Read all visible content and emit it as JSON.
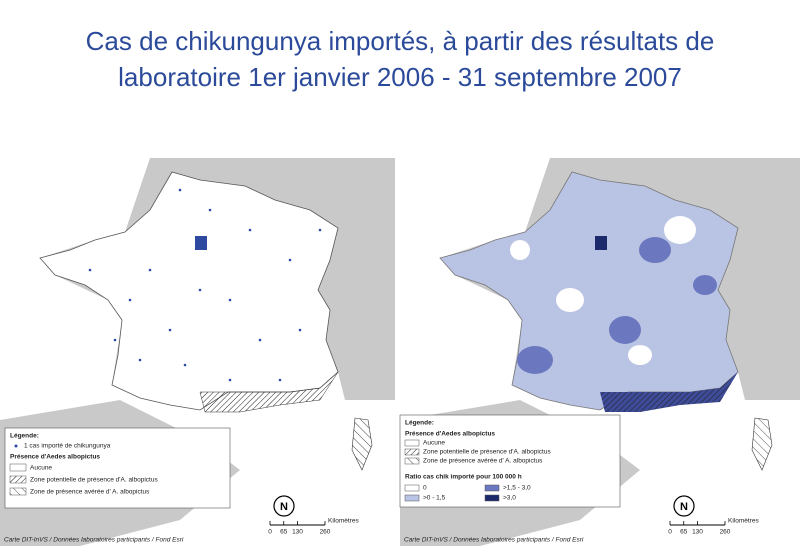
{
  "title": {
    "lines": [
      "Cas de chikungunya importés, à partir des résultats de",
      "laboratoire 1er janvier 2006 - 31 septembre 2007"
    ]
  },
  "left_map": {
    "legend": {
      "heading": "Légende:",
      "case_symbol": "1 cas importé de chikungunya",
      "albopictus_heading": "Présence d'Aedes albopictus",
      "albopictus_classes": [
        "Aucune",
        "Zone potentielle de présence d'A. albopictus",
        "Zone de présence avérée d' A. albopictus"
      ]
    }
  },
  "right_map": {
    "legend": {
      "heading": "Légende:",
      "albopictus_heading": "Présence d'Aedes albopictus",
      "albopictus_classes": [
        "Aucune",
        "Zone potentielle de présence d'A. albopictus",
        "Zone de présence avérée d' A. albopictus"
      ],
      "ratio_heading": "Ratio cas chik importé pour 100 000 h",
      "ratio_classes": [
        {
          "label": "0",
          "color": "#ffffff"
        },
        {
          "label": ">1,5 - 3,0",
          "color": "#6b78c0"
        },
        {
          "label": ">0 - 1,5",
          "color": "#b9c3e3"
        },
        {
          "label": ">3,0",
          "color": "#1c2a6b"
        }
      ]
    }
  },
  "scale": {
    "ticks": [
      0,
      65,
      130,
      260
    ],
    "unit": "Kilomètres"
  },
  "north": "N",
  "credit": "Carte DIT-InVS / Données laboratoires participants / Fond Esri"
}
